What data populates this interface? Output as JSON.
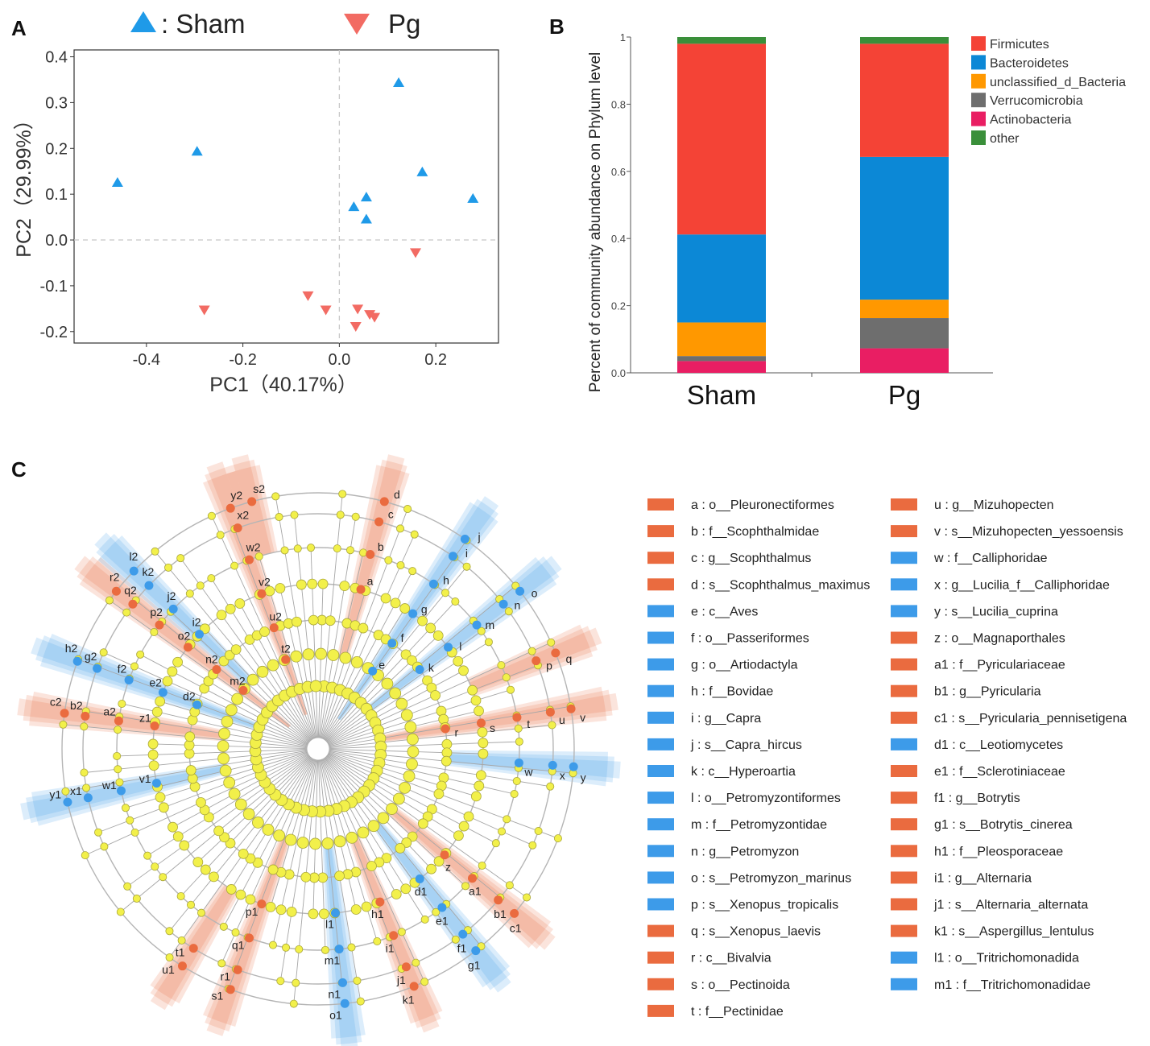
{
  "panels": {
    "a": "A",
    "b": "B",
    "c": "C"
  },
  "chart_data": [
    {
      "type": "scatter",
      "panel": "A",
      "legend": [
        {
          "name": "Sham",
          "marker": "triangle-up",
          "color": "#1f9ae8",
          "label": ": Sham"
        },
        {
          "name": "Pg",
          "marker": "triangle-down",
          "color": "#f26b63",
          "label": "Pg"
        }
      ],
      "xlabel": "PC1（40.17%）",
      "ylabel": "PC2（29.99%）",
      "xlim": [
        -0.55,
        0.33
      ],
      "ylim": [
        -0.225,
        0.415
      ],
      "xticks": [
        -0.4,
        -0.2,
        0.0,
        0.2
      ],
      "xtick_labels": [
        "-0.4",
        "-0.2",
        "0.0",
        "0.2"
      ],
      "yticks": [
        0.4,
        0.3,
        0.2,
        0.1,
        0.0,
        -0.1,
        -0.2
      ],
      "ytick_labels": [
        "0.4",
        "0.3",
        "0.2",
        "0.1",
        "0.0",
        "-0.1",
        "-0.2"
      ],
      "series": [
        {
          "name": "Sham",
          "points": [
            [
              -0.46,
              0.125
            ],
            [
              -0.295,
              0.193
            ],
            [
              0.123,
              0.343
            ],
            [
              0.172,
              0.148
            ],
            [
              0.277,
              0.09
            ],
            [
              0.056,
              0.093
            ],
            [
              0.03,
              0.072
            ],
            [
              0.056,
              0.045
            ]
          ]
        },
        {
          "name": "Pg",
          "points": [
            [
              -0.28,
              -0.152
            ],
            [
              -0.065,
              -0.121
            ],
            [
              -0.028,
              -0.152
            ],
            [
              0.158,
              -0.027
            ],
            [
              0.038,
              -0.15
            ],
            [
              0.063,
              -0.162
            ],
            [
              0.073,
              -0.168
            ],
            [
              0.034,
              -0.188
            ]
          ]
        }
      ]
    },
    {
      "type": "bar",
      "stacked": true,
      "panel": "B",
      "categories": [
        "Sham",
        "Pg"
      ],
      "ylabel": "Percent of community abundance on Phylum level",
      "ylim": [
        0,
        1
      ],
      "yticks": [
        0,
        0.2,
        0.4,
        0.6,
        0.8,
        1
      ],
      "ytick_labels": [
        "0.0",
        "0.2",
        "0.4",
        "0.6",
        "0.8",
        "1"
      ],
      "series": [
        {
          "name": "Actinobacteria",
          "color": "#e91e63",
          "values": [
            0.035,
            0.073
          ]
        },
        {
          "name": "Verrucomicrobia",
          "color": "#6e6e6e",
          "values": [
            0.015,
            0.09
          ]
        },
        {
          "name": "unclassified_d_Bacteria",
          "color": "#ff9800",
          "values": [
            0.1,
            0.055
          ]
        },
        {
          "name": "Bacteroidetes",
          "color": "#0c88d6",
          "values": [
            0.262,
            0.425
          ]
        },
        {
          "name": "Firmicutes",
          "color": "#f44336",
          "values": [
            0.568,
            0.337
          ]
        },
        {
          "name": "other",
          "color": "#3a8f3a",
          "values": [
            0.02,
            0.02
          ]
        }
      ],
      "legend_order": [
        "Firmicutes",
        "Bacteroidetes",
        "unclassified_d_Bacteria",
        "Verrucomicrobia",
        "Actinobacteria",
        "other"
      ]
    }
  ],
  "cladogram": {
    "panel": "C",
    "colors": {
      "orange": "#ea6b3f",
      "blue": "#3d9be9",
      "node": "#f2f04a",
      "node_stroke": "#a9a63a",
      "line": "#9a9a9a"
    },
    "legend_col1": [
      {
        "key": "a : o__Pleuronectiformes",
        "color": "orange"
      },
      {
        "key": "b : f__Scophthalmidae",
        "color": "orange"
      },
      {
        "key": "c : g__Scophthalmus",
        "color": "orange"
      },
      {
        "key": "d : s__Scophthalmus_maximus",
        "color": "orange"
      },
      {
        "key": "e : c__Aves",
        "color": "blue"
      },
      {
        "key": "f : o__Passeriformes",
        "color": "blue"
      },
      {
        "key": "g : o__Artiodactyla",
        "color": "blue"
      },
      {
        "key": "h : f__Bovidae",
        "color": "blue"
      },
      {
        "key": "i : g__Capra",
        "color": "blue"
      },
      {
        "key": "j : s__Capra_hircus",
        "color": "blue"
      },
      {
        "key": "k : c__Hyperoartia",
        "color": "blue"
      },
      {
        "key": "l : o__Petromyzontiformes",
        "color": "blue"
      },
      {
        "key": "m : f__Petromyzontidae",
        "color": "blue"
      },
      {
        "key": "n : g__Petromyzon",
        "color": "blue"
      },
      {
        "key": "o : s__Petromyzon_marinus",
        "color": "blue"
      },
      {
        "key": "p : s__Xenopus_tropicalis",
        "color": "blue"
      },
      {
        "key": "q : s__Xenopus_laevis",
        "color": "orange"
      },
      {
        "key": "r : c__Bivalvia",
        "color": "orange"
      },
      {
        "key": "s : o__Pectinoida",
        "color": "orange"
      },
      {
        "key": "t : f__Pectinidae",
        "color": "orange"
      }
    ],
    "legend_col2": [
      {
        "key": "u : g__Mizuhopecten",
        "color": "orange"
      },
      {
        "key": "v : s__Mizuhopecten_yessoensis",
        "color": "orange"
      },
      {
        "key": "w : f__Calliphoridae",
        "color": "blue"
      },
      {
        "key": "x : g__Lucilia_f__Calliphoridae",
        "color": "blue"
      },
      {
        "key": "y : s__Lucilia_cuprina",
        "color": "blue"
      },
      {
        "key": "z : o__Magnaporthales",
        "color": "orange"
      },
      {
        "key": "a1 : f__Pyriculariaceae",
        "color": "orange"
      },
      {
        "key": "b1 : g__Pyricularia",
        "color": "orange"
      },
      {
        "key": "c1 : s__Pyricularia_pennisetigena",
        "color": "orange"
      },
      {
        "key": "d1 : c__Leotiomycetes",
        "color": "blue"
      },
      {
        "key": "e1 : f__Sclerotiniaceae",
        "color": "orange"
      },
      {
        "key": "f1 : g__Botrytis",
        "color": "orange"
      },
      {
        "key": "g1 : s__Botrytis_cinerea",
        "color": "orange"
      },
      {
        "key": "h1 : f__Pleosporaceae",
        "color": "orange"
      },
      {
        "key": "i1 : g__Alternaria",
        "color": "orange"
      },
      {
        "key": "j1 : s__Alternaria_alternata",
        "color": "orange"
      },
      {
        "key": "k1 : s__Aspergillus_lentulus",
        "color": "orange"
      },
      {
        "key": "l1 : o__Tritrichomonadida",
        "color": "blue"
      },
      {
        "key": "m1 : f__Tritrichomonadidae",
        "color": "blue"
      }
    ],
    "clades": [
      {
        "labels": [
          "a",
          "b",
          "c",
          "d"
        ],
        "angle": -75,
        "color": "orange"
      },
      {
        "labels": [
          "e",
          "f",
          "g",
          "h",
          "i",
          "j"
        ],
        "angle": -55,
        "color": "blue"
      },
      {
        "labels": [
          "k",
          "l",
          "m",
          "n",
          "o"
        ],
        "angle": -38,
        "color": "blue"
      },
      {
        "labels": [
          "p",
          "q"
        ],
        "angle": -22,
        "color": "orange"
      },
      {
        "labels": [
          "r",
          "s",
          "t",
          "u",
          "v"
        ],
        "angle": -9,
        "color": "orange"
      },
      {
        "labels": [
          "w",
          "x",
          "y"
        ],
        "angle": 4,
        "color": "blue"
      },
      {
        "labels": [
          "z",
          "a1",
          "b1",
          "c1"
        ],
        "angle": 40,
        "color": "orange"
      },
      {
        "labels": [
          "d1",
          "e1",
          "f1",
          "g1"
        ],
        "angle": 52,
        "color": "blue"
      },
      {
        "labels": [
          "h1",
          "i1",
          "j1",
          "k1"
        ],
        "angle": 68,
        "color": "orange"
      },
      {
        "labels": [
          "l1",
          "m1",
          "n1",
          "o1"
        ],
        "angle": 84,
        "color": "blue"
      },
      {
        "labels": [
          "p1",
          "q1",
          "r1",
          "s1"
        ],
        "angle": 110,
        "color": "orange"
      },
      {
        "labels": [
          "t1",
          "u1"
        ],
        "angle": 122,
        "color": "orange"
      },
      {
        "labels": [
          "v1",
          "w1",
          "x1",
          "y1"
        ],
        "angle": 168,
        "color": "blue"
      },
      {
        "labels": [
          "z1",
          "a2",
          "b2",
          "c2"
        ],
        "angle": 188,
        "color": "orange"
      },
      {
        "labels": [
          "d2",
          "e2",
          "f2",
          "g2",
          "h2"
        ],
        "angle": 200,
        "color": "blue"
      },
      {
        "labels": [
          "m2",
          "n2",
          "o2",
          "p2",
          "q2",
          "r2"
        ],
        "angle": 218,
        "color": "orange"
      },
      {
        "labels": [
          "i2",
          "j2",
          "k2",
          "l2"
        ],
        "angle": 224,
        "color": "blue"
      },
      {
        "labels": [
          "t2",
          "u2",
          "v2",
          "w2",
          "x2",
          "y2"
        ],
        "angle": 250,
        "color": "orange"
      },
      {
        "labels": [
          "s2"
        ],
        "angle": 255,
        "color": "orange"
      }
    ]
  }
}
